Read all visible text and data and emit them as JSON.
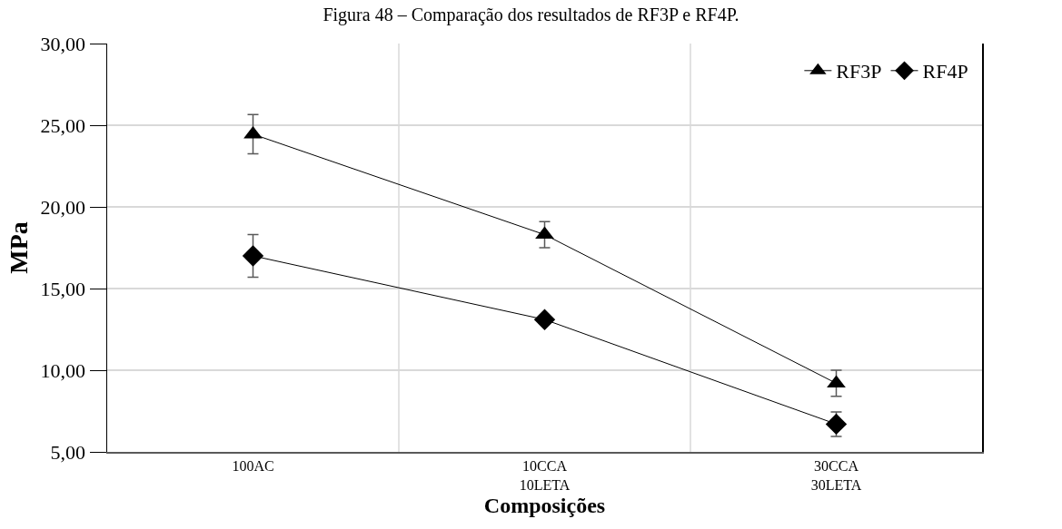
{
  "chart_data": {
    "type": "line",
    "title": "Figura 48 – Comparação dos resultados de RF3P e RF4P.",
    "xlabel": "Composições",
    "ylabel": "MPa",
    "categories": [
      "100AC",
      "10CCA\n10LETA",
      "30CCA\n30LETA"
    ],
    "series": [
      {
        "name": "RF3P",
        "color": "#000000",
        "marker": "triangle",
        "values": [
          24.45,
          18.3,
          9.2
        ],
        "errors": [
          1.2,
          0.8,
          0.8
        ]
      },
      {
        "name": "RF4P",
        "color": "#000000",
        "marker": "diamond",
        "values": [
          17.0,
          13.1,
          6.7
        ],
        "errors": [
          1.3,
          null,
          0.75
        ]
      }
    ],
    "ylim": [
      5,
      30
    ],
    "yticks": [
      {
        "value": 5,
        "label": "5,00"
      },
      {
        "value": 10,
        "label": "10,00"
      },
      {
        "value": 15,
        "label": "15,00"
      },
      {
        "value": 20,
        "label": "20,00"
      },
      {
        "value": 25,
        "label": "25,00"
      },
      {
        "value": 30,
        "label": "30,00"
      }
    ],
    "grid": true,
    "legend": "top right",
    "line_style": "solid"
  }
}
